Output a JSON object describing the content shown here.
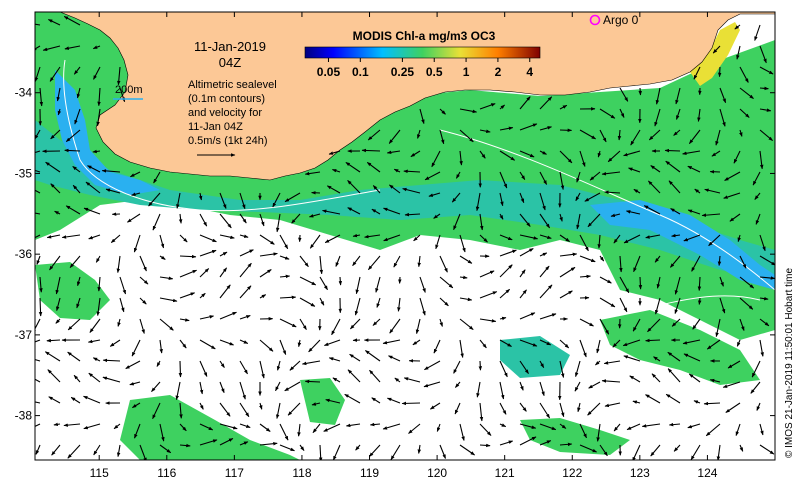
{
  "colors": {
    "land": "#fcc896",
    "ocean": "#ffffff",
    "chl_green": "#3ed160",
    "chl_teal": "#2bc3a6",
    "chl_cyan": "#2ab0f0",
    "chl_yellow": "#e9e036",
    "argo": "#ff00ff",
    "contour": "#ffffff",
    "arrow": "#000000"
  },
  "map": {
    "date_line1": "11-Jan-2019",
    "date_line2": "04Z",
    "depth_label": "200m",
    "annotation": [
      "Altimetric sealevel",
      "(0.1m contours)",
      "and velocity for",
      "11-Jan 04Z",
      "0.5m/s (1kt 24h)"
    ],
    "argo_label": "Argo 0",
    "credit": "© IMOS 21-Jan-2019 11:50:01 Hobart time"
  },
  "colorbar": {
    "title": "MODIS Chl-a mg/m3 OC3",
    "ticks": [
      "0.05",
      "0.1",
      "0.25",
      "0.5",
      "1",
      "2",
      "4"
    ],
    "tick_values": [
      0.05,
      0.1,
      0.25,
      0.5,
      1,
      2,
      4
    ],
    "range": [
      0.03,
      5
    ],
    "scale": "log"
  },
  "axes": {
    "x_ticks": [
      "115",
      "116",
      "117",
      "118",
      "119",
      "120",
      "121",
      "122",
      "123",
      "124"
    ],
    "x_values": [
      115,
      116,
      117,
      118,
      119,
      120,
      121,
      122,
      123,
      124
    ],
    "y_ticks": [
      "-34",
      "-35",
      "-36",
      "-37",
      "-38"
    ],
    "y_values": [
      -34,
      -35,
      -36,
      -37,
      -38
    ],
    "xlim": [
      114.05,
      125.0
    ],
    "ylim": [
      -38.55,
      -33.0
    ]
  }
}
